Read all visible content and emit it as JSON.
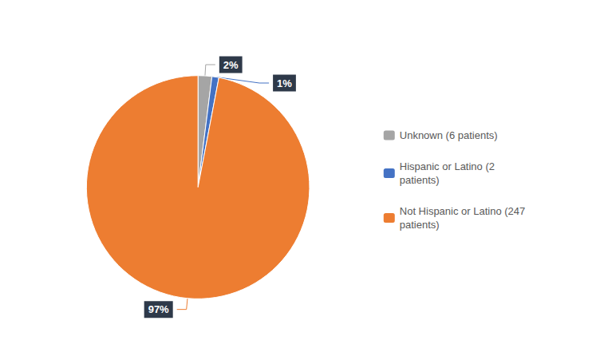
{
  "chart_data": {
    "type": "pie",
    "categories": [
      "Unknown (6 patients)",
      "Hispanic or Latino (2\npatients)",
      "Not Hispanic or Latino (247\npatients)"
    ],
    "values": [
      2,
      1,
      97
    ],
    "value_labels": [
      "2%",
      "1%",
      "97%"
    ],
    "colors": [
      "#A5A5A5",
      "#4472C4",
      "#ED7D31"
    ],
    "data_labels": true,
    "legend": "right"
  }
}
